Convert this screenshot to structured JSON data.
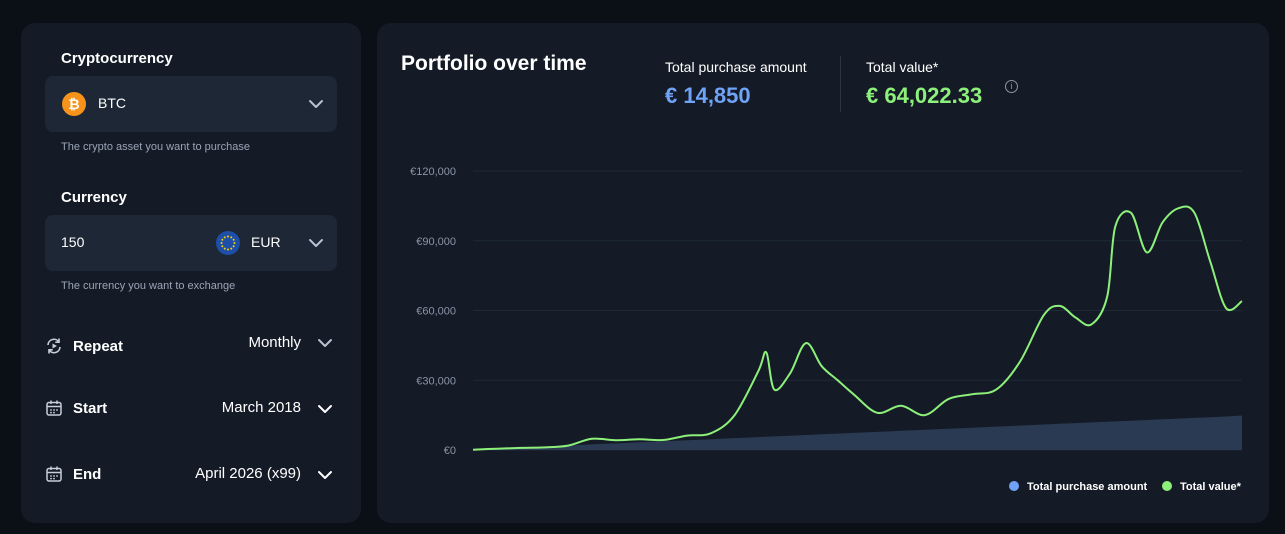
{
  "crypto": {
    "label": "Cryptocurrency",
    "selected": "BTC",
    "coin_glyph": "₿",
    "helper": "The crypto asset you want to purchase"
  },
  "currency": {
    "label": "Currency",
    "amount": "150",
    "selected": "EUR",
    "helper": "The currency you want to exchange"
  },
  "repeat": {
    "label": "Repeat",
    "value": "Monthly"
  },
  "start": {
    "label": "Start",
    "value": "March 2018"
  },
  "end": {
    "label": "End",
    "value": "April 2026 (x99)"
  },
  "header": {
    "title": "Portfolio over time",
    "purchase_label": "Total purchase amount",
    "purchase_value": "€ 14,850",
    "total_label": "Total value*",
    "total_value": "€ 64,022.33",
    "info_glyph": "i"
  },
  "colors": {
    "purchase": "#6fa3f7",
    "total": "#8df07a",
    "purchase_area": "#2a3a52"
  },
  "chart_data": {
    "type": "line",
    "ylim": [
      0,
      120000
    ],
    "y_ticks": [
      0,
      30000,
      60000,
      90000,
      120000
    ],
    "y_tick_labels": [
      "€0",
      "€30,000",
      "€60,000",
      "€90,000",
      "€120,000"
    ],
    "x": [
      "2018-03",
      "2018-06",
      "2018-09",
      "2018-12",
      "2019-03",
      "2019-06",
      "2019-09",
      "2019-12",
      "2020-03",
      "2020-06",
      "2020-09",
      "2020-12",
      "2021-03",
      "2021-04",
      "2021-05",
      "2021-07",
      "2021-09",
      "2021-11",
      "2022-01",
      "2022-03",
      "2022-06",
      "2022-09",
      "2022-12",
      "2023-03",
      "2023-06",
      "2023-09",
      "2023-12",
      "2024-03",
      "2024-05",
      "2024-07",
      "2024-09",
      "2024-11",
      "2024-12",
      "2025-02",
      "2025-04",
      "2025-06",
      "2025-08",
      "2025-10",
      "2025-12",
      "2026-02",
      "2026-04"
    ],
    "series": [
      {
        "name": "Total purchase amount",
        "type": "area",
        "values": [
          150,
          600,
          1050,
          1500,
          1950,
          2400,
          2850,
          3300,
          3750,
          4200,
          4650,
          5100,
          5550,
          5700,
          5850,
          6150,
          6450,
          6750,
          7050,
          7350,
          7800,
          8250,
          8700,
          9150,
          9600,
          10050,
          10500,
          10950,
          11250,
          11550,
          11850,
          12150,
          12300,
          12600,
          12900,
          13200,
          13500,
          13800,
          14100,
          14400,
          14850
        ]
      },
      {
        "name": "Total value*",
        "type": "line",
        "values": [
          150,
          550,
          900,
          1100,
          1900,
          4800,
          4200,
          4600,
          4300,
          6200,
          7200,
          15000,
          34000,
          42000,
          26000,
          33000,
          46000,
          36000,
          30000,
          24000,
          16000,
          19000,
          15000,
          22000,
          24000,
          26000,
          38000,
          58000,
          62000,
          57000,
          54000,
          66000,
          96000,
          102000,
          85000,
          98000,
          104000,
          102000,
          81000,
          61000,
          64022
        ]
      }
    ]
  },
  "legend": [
    {
      "label": "Total purchase amount"
    },
    {
      "label": "Total value*"
    }
  ]
}
